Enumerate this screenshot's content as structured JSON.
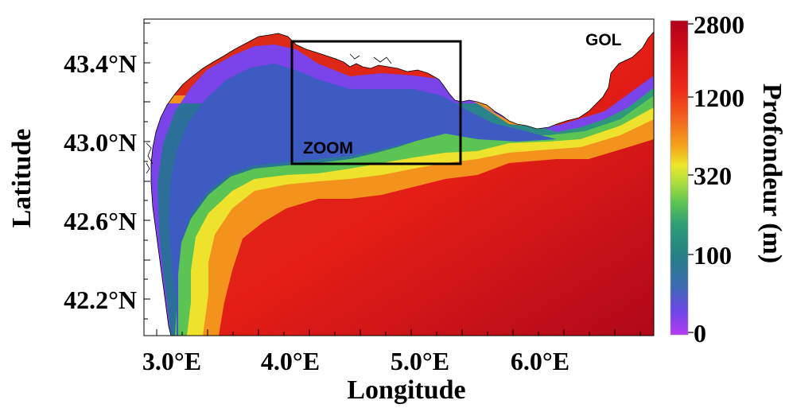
{
  "map": {
    "xlabel": "Longitude",
    "ylabel": "Latitude",
    "x_ticks": [
      "3.0°E",
      "4.0°E",
      "5.0°E",
      "6.0°E"
    ],
    "y_ticks": [
      "43.4°N",
      "43.0°N",
      "42.6°N",
      "42.2°N"
    ],
    "region_label": "GOL",
    "zoom_label": "ZOOM",
    "land_color": "#ffffff",
    "coast_color": "#000000"
  },
  "colorbar": {
    "title": "Profondeur (m)",
    "ticks": [
      "2800",
      "1200",
      "320",
      "100",
      "0"
    ],
    "colors": [
      "#b0001e",
      "#dc1414",
      "#f03c1e",
      "#f2781e",
      "#f4b419",
      "#ede82a",
      "#b4dc3c",
      "#64c850",
      "#2e9e76",
      "#267f86",
      "#3a6cae",
      "#5a50dc",
      "#8a3cf0",
      "#b43cf5"
    ]
  }
}
